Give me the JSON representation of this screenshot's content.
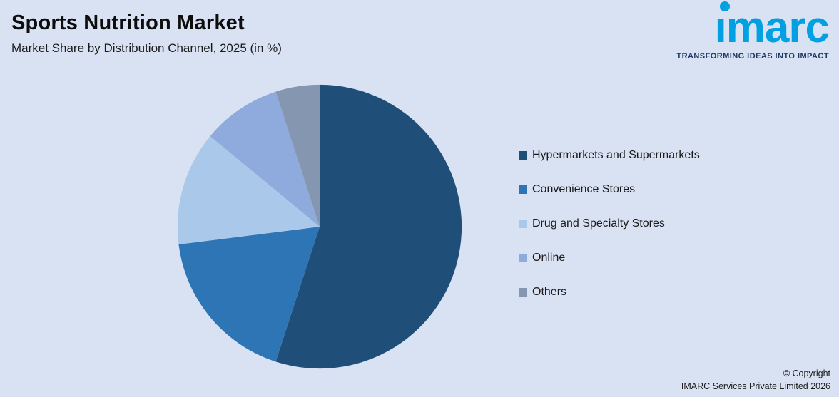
{
  "header": {
    "title": "Sports Nutrition Market",
    "subtitle": "Market Share by Distribution Channel, 2025 (in %)"
  },
  "logo": {
    "text_head": "ı",
    "text_tail": "marc",
    "full_text": "imarc",
    "tagline": "TRANSFORMING IDEAS INTO IMPACT",
    "brand_color": "#00a0e3",
    "tagline_color": "#1f3864"
  },
  "chart_data": {
    "type": "pie",
    "title": "Sports Nutrition Market",
    "subtitle": "Market Share by Distribution Channel, 2025 (in %)",
    "labels": [
      "Hypermarkets and Supermarkets",
      "Convenience Stores",
      "Drug and Specialty Stores",
      "Online",
      "Others"
    ],
    "values": [
      55,
      18,
      13,
      9,
      5
    ],
    "unit": "%",
    "colors": [
      "#1f4e79",
      "#2e75b6",
      "#aac9ea",
      "#8faadc",
      "#8496b0"
    ],
    "legend_position": "right",
    "start_angle_deg": 0,
    "direction": "clockwise"
  },
  "footer": {
    "copyright_line1": "© Copyright",
    "copyright_line2": "IMARC Services Private Limited 2026"
  },
  "colors": {
    "background": "#d9e2f3",
    "text": "#1a1a1a"
  }
}
